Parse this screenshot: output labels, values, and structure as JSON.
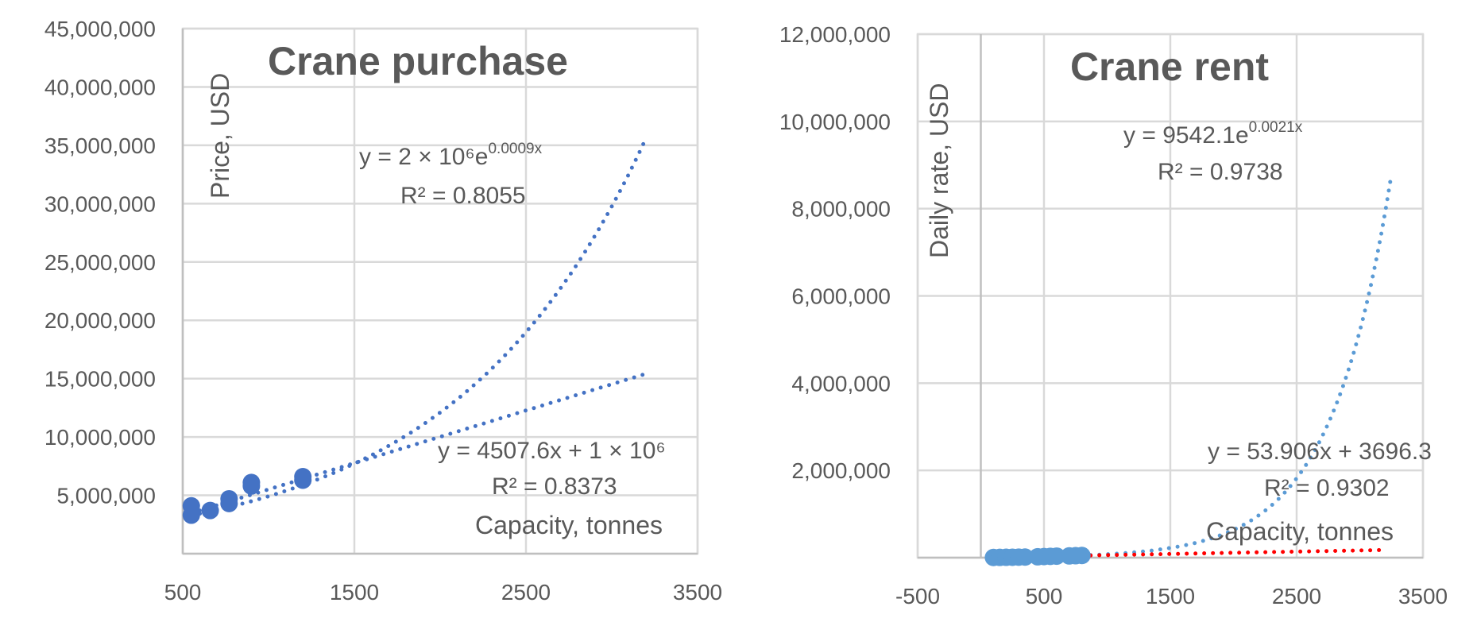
{
  "chart_data": [
    {
      "type": "scatter",
      "title": "Crane purchase",
      "xlabel": "Capacity, tonnes",
      "ylabel": "Price, USD",
      "xlim": [
        500,
        3500
      ],
      "ylim": [
        0,
        45000000
      ],
      "xticks": [
        500,
        1500,
        2500,
        3500
      ],
      "xtick_labels": [
        "500",
        "1500",
        "2500",
        "3500"
      ],
      "yticks": [
        5000000,
        10000000,
        15000000,
        20000000,
        25000000,
        30000000,
        35000000,
        40000000,
        45000000
      ],
      "ytick_labels": [
        "5,000,000",
        "10,000,000",
        "15,000,000",
        "20,000,000",
        "25,000,000",
        "30,000,000",
        "35,000,000",
        "40,000,000",
        "45,000,000"
      ],
      "grid": true,
      "marker_color": "#4472C4",
      "series": [
        {
          "x": [
            550,
            550,
            660,
            770,
            770,
            900,
            900,
            1200,
            1200
          ],
          "y": [
            4100000,
            3300000,
            3700000,
            4300000,
            4700000,
            5800000,
            6100000,
            6300000,
            6600000
          ]
        }
      ],
      "trendlines": [
        {
          "kind": "exponential",
          "a": 2000000,
          "b": 0.0009,
          "x_range": [
            550,
            3200
          ],
          "color": "#4472C4",
          "equation": "y = 2 × 10⁶e",
          "equation_exponent": "0.0009x",
          "r2_label": "R² = 0.8055"
        },
        {
          "kind": "linear",
          "slope": 4507.6,
          "intercept": 1000000,
          "x_range": [
            550,
            3180
          ],
          "color": "#4472C4",
          "equation": "y = 4507.6x + 1 × 10⁶",
          "r2_label": "R² = 0.8373"
        }
      ]
    },
    {
      "type": "scatter",
      "title": "Crane rent",
      "xlabel": "Capacity, tonnes",
      "ylabel": "Daily rate, USD",
      "xlim": [
        -500,
        3500
      ],
      "ylim": [
        0,
        12000000
      ],
      "xticks": [
        -500,
        500,
        1500,
        2500,
        3500
      ],
      "xtick_labels": [
        "-500",
        "500",
        "1500",
        "2500",
        "3500"
      ],
      "yticks": [
        2000000,
        4000000,
        6000000,
        8000000,
        10000000,
        12000000
      ],
      "ytick_labels": [
        "2,000,000",
        "4,000,000",
        "6,000,000",
        "8,000,000",
        "10,000,000",
        "12,000,000"
      ],
      "grid": true,
      "marker_color": "#5B9BD5",
      "series": [
        {
          "x": [
            100,
            150,
            200,
            250,
            300,
            350,
            450,
            500,
            550,
            600,
            700,
            750,
            800
          ],
          "y": [
            5000,
            6000,
            8000,
            10000,
            12000,
            14000,
            20000,
            25000,
            30000,
            35000,
            40000,
            45000,
            50000
          ]
        }
      ],
      "trendlines": [
        {
          "kind": "exponential",
          "a": 9542.1,
          "b": 0.0021,
          "x_range": [
            800,
            3250
          ],
          "color": "#5B9BD5",
          "equation": "y = 9542.1e",
          "equation_exponent": "0.0021x",
          "r2_label": "R² = 0.9738"
        },
        {
          "kind": "linear",
          "slope": 53.906,
          "intercept": 3696.3,
          "x_range": [
            800,
            3200
          ],
          "color": "#FF0000",
          "equation": "y = 53.906x + 3696.3",
          "r2_label": "R² = 0.9302"
        }
      ]
    }
  ]
}
